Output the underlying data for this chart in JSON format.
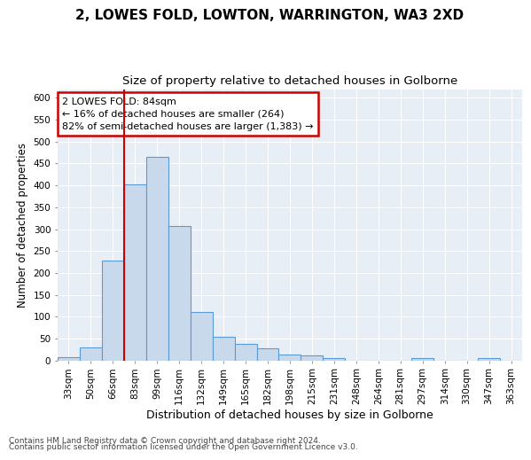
{
  "title": "2, LOWES FOLD, LOWTON, WARRINGTON, WA3 2XD",
  "subtitle": "Size of property relative to detached houses in Golborne",
  "xlabel": "Distribution of detached houses by size in Golborne",
  "ylabel": "Number of detached properties",
  "bar_labels": [
    "33sqm",
    "50sqm",
    "66sqm",
    "83sqm",
    "99sqm",
    "116sqm",
    "132sqm",
    "149sqm",
    "165sqm",
    "182sqm",
    "198sqm",
    "215sqm",
    "231sqm",
    "248sqm",
    "264sqm",
    "281sqm",
    "297sqm",
    "314sqm",
    "330sqm",
    "347sqm",
    "363sqm"
  ],
  "bar_values": [
    7,
    30,
    228,
    403,
    465,
    308,
    111,
    54,
    38,
    27,
    13,
    12,
    6,
    0,
    0,
    0,
    5,
    0,
    0,
    5,
    0
  ],
  "bar_color": "#c9d9ec",
  "bar_edge_color": "#5b9bd5",
  "vline_index": 3,
  "vline_color": "#cc0000",
  "annotation_text": "2 LOWES FOLD: 84sqm\n← 16% of detached houses are smaller (264)\n82% of semi-detached houses are larger (1,383) →",
  "annotation_box_color": "#ffffff",
  "annotation_box_edge": "#cc0000",
  "ylim": [
    0,
    620
  ],
  "yticks": [
    0,
    50,
    100,
    150,
    200,
    250,
    300,
    350,
    400,
    450,
    500,
    550,
    600
  ],
  "background_color": "#e8eef5",
  "grid_color": "#ffffff",
  "footer_line1": "Contains HM Land Registry data © Crown copyright and database right 2024.",
  "footer_line2": "Contains public sector information licensed under the Open Government Licence v3.0.",
  "title_fontsize": 11,
  "subtitle_fontsize": 9.5,
  "xlabel_fontsize": 9,
  "ylabel_fontsize": 8.5,
  "tick_fontsize": 7.5,
  "annotation_fontsize": 8,
  "footer_fontsize": 6.5
}
